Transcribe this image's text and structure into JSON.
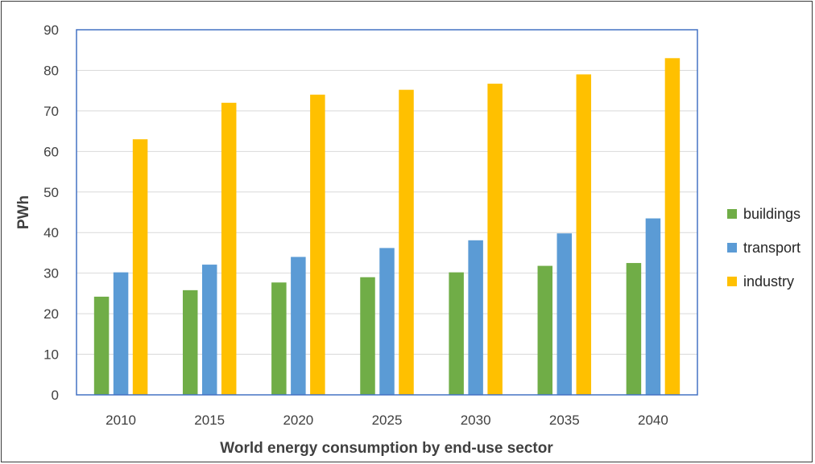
{
  "chart_data": {
    "type": "bar",
    "title": "",
    "xlabel": "World energy  consumption by end-use sector",
    "ylabel": "PWh",
    "categories": [
      "2010",
      "2015",
      "2020",
      "2025",
      "2030",
      "2035",
      "2040"
    ],
    "ylim": [
      0,
      90
    ],
    "yticks": [
      "0",
      "10",
      "20",
      "30",
      "40",
      "50",
      "60",
      "70",
      "80",
      "90"
    ],
    "grid": true,
    "legend_position": "right",
    "series": [
      {
        "name": "buildings",
        "color": "#70AD47",
        "values": [
          24.2,
          25.8,
          27.7,
          29.0,
          30.2,
          31.8,
          32.5
        ]
      },
      {
        "name": "transport",
        "color": "#5B9BD5",
        "values": [
          30.2,
          32.1,
          34.0,
          36.2,
          38.1,
          39.8,
          43.5
        ]
      },
      {
        "name": "industry",
        "color": "#FFC000",
        "values": [
          63.0,
          72.0,
          74.0,
          75.2,
          76.7,
          79.0,
          83.0
        ]
      }
    ]
  }
}
